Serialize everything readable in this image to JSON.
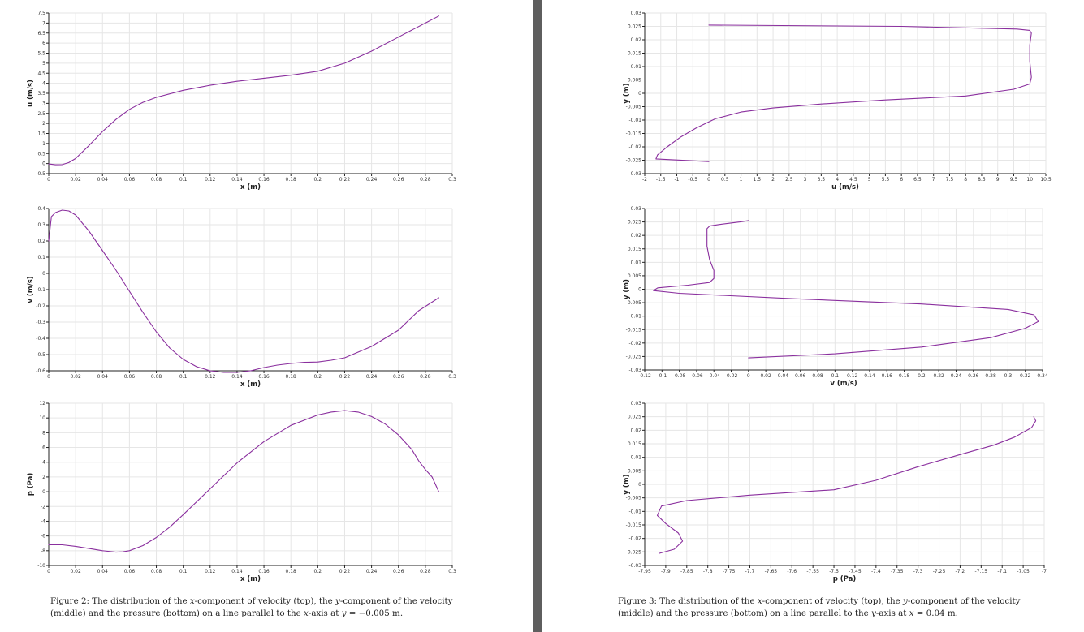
{
  "style": {
    "series_color": "#8a2f9e",
    "gutter_color": "#5e5e5e"
  },
  "captions": {
    "fig2": {
      "label": "Figure 2:",
      "p1": "The distribution of the ",
      "m1": "x",
      "p2": "-component of velocity (top), the ",
      "m2": "y",
      "p3": "-component of the velocity (middle) and the pressure (bottom) on a line parallel to the ",
      "m3": "x",
      "p4": "-axis at ",
      "m4": "y",
      "p5": " = −0.005 m."
    },
    "fig3": {
      "label": "Figure 3:",
      "p1": "The distribution of the ",
      "m1": "x",
      "p2": "-component of velocity (top), the ",
      "m2": "y",
      "p3": "-component of the velocity (middle) and the pressure (bottom) on a line parallel to the ",
      "m3": "y",
      "p4": "-axis at ",
      "m4": "x",
      "p5": " = 0.04 m."
    }
  },
  "chart_data": [
    {
      "id": "fig2-u",
      "type": "line",
      "title": "",
      "xlabel": "x (m)",
      "ylabel": "u (m/s)",
      "xlim": [
        0,
        0.3
      ],
      "ylim": [
        -0.5,
        7.5
      ],
      "xticks": [
        0,
        0.02,
        0.04,
        0.06,
        0.08,
        0.1,
        0.12,
        0.14,
        0.16,
        0.18,
        0.2,
        0.22,
        0.24,
        0.26,
        0.28,
        0.3
      ],
      "xtick_labels": [
        "0",
        "0.02",
        "0.04",
        "0.06",
        "0.08",
        "0.1",
        "0.12",
        "0.14",
        "0.16",
        "0.18",
        "0.2",
        "0.22",
        "0.24",
        "0.26",
        "0.28",
        "0.3"
      ],
      "yticks": [
        -0.5,
        0,
        0.5,
        1,
        1.5,
        2,
        2.5,
        3,
        3.5,
        4,
        4.5,
        5,
        5.5,
        6,
        6.5,
        7,
        7.5
      ],
      "ytick_labels": [
        "-0.5",
        "0",
        "0.5",
        "1",
        "1.5",
        "2",
        "2.5",
        "3",
        "3.5",
        "4",
        "4.5",
        "5",
        "5.5",
        "6",
        "6.5",
        "7",
        "7.5"
      ],
      "grid": true,
      "series": [
        {
          "name": "u",
          "x": [
            0,
            0.005,
            0.01,
            0.015,
            0.02,
            0.03,
            0.04,
            0.05,
            0.06,
            0.07,
            0.08,
            0.1,
            0.12,
            0.14,
            0.16,
            0.18,
            0.2,
            0.22,
            0.24,
            0.26,
            0.28,
            0.29
          ],
          "y": [
            -0.02,
            -0.06,
            -0.05,
            0.05,
            0.25,
            0.9,
            1.6,
            2.2,
            2.7,
            3.05,
            3.3,
            3.65,
            3.9,
            4.1,
            4.25,
            4.4,
            4.6,
            5.0,
            5.6,
            6.3,
            7.0,
            7.35
          ]
        }
      ]
    },
    {
      "id": "fig2-v",
      "type": "line",
      "title": "",
      "xlabel": "x (m)",
      "ylabel": "v (m/s)",
      "xlim": [
        0,
        0.3
      ],
      "ylim": [
        -0.6,
        0.4
      ],
      "xticks": [
        0,
        0.02,
        0.04,
        0.06,
        0.08,
        0.1,
        0.12,
        0.14,
        0.16,
        0.18,
        0.2,
        0.22,
        0.24,
        0.26,
        0.28,
        0.3
      ],
      "xtick_labels": [
        "0",
        "0.02",
        "0.04",
        "0.06",
        "0.08",
        "0.1",
        "0.12",
        "0.14",
        "0.16",
        "0.18",
        "0.2",
        "0.22",
        "0.24",
        "0.26",
        "0.28",
        "0.3"
      ],
      "yticks": [
        -0.6,
        -0.5,
        -0.4,
        -0.3,
        -0.2,
        -0.1,
        0,
        0.1,
        0.2,
        0.3,
        0.4
      ],
      "ytick_labels": [
        "-0.6",
        "-0.5",
        "-0.4",
        "-0.3",
        "-0.2",
        "-0.1",
        "0",
        "0.1",
        "0.2",
        "0.3",
        "0.4"
      ],
      "grid": true,
      "series": [
        {
          "name": "v",
          "x": [
            0,
            0.002,
            0.005,
            0.01,
            0.015,
            0.02,
            0.03,
            0.04,
            0.05,
            0.06,
            0.07,
            0.08,
            0.09,
            0.1,
            0.11,
            0.12,
            0.13,
            0.14,
            0.15,
            0.16,
            0.17,
            0.18,
            0.19,
            0.2,
            0.21,
            0.22,
            0.24,
            0.26,
            0.275,
            0.29
          ],
          "y": [
            0.2,
            0.35,
            0.375,
            0.39,
            0.385,
            0.36,
            0.26,
            0.14,
            0.02,
            -0.11,
            -0.24,
            -0.36,
            -0.46,
            -0.53,
            -0.575,
            -0.6,
            -0.61,
            -0.61,
            -0.6,
            -0.58,
            -0.565,
            -0.555,
            -0.548,
            -0.546,
            -0.535,
            -0.52,
            -0.45,
            -0.35,
            -0.23,
            -0.15
          ]
        }
      ]
    },
    {
      "id": "fig2-p",
      "type": "line",
      "title": "",
      "xlabel": "x (m)",
      "ylabel": "p (Pa)",
      "xlim": [
        0,
        0.3
      ],
      "ylim": [
        -10,
        12
      ],
      "xticks": [
        0,
        0.02,
        0.04,
        0.06,
        0.08,
        0.1,
        0.12,
        0.14,
        0.16,
        0.18,
        0.2,
        0.22,
        0.24,
        0.26,
        0.28,
        0.3
      ],
      "xtick_labels": [
        "0",
        "0.02",
        "0.04",
        "0.06",
        "0.08",
        "0.1",
        "0.12",
        "0.14",
        "0.16",
        "0.18",
        "0.2",
        "0.22",
        "0.24",
        "0.26",
        "0.28",
        "0.3"
      ],
      "yticks": [
        -10,
        -8,
        -6,
        -4,
        -2,
        0,
        2,
        4,
        6,
        8,
        10,
        12
      ],
      "ytick_labels": [
        "-10",
        "-8",
        "-6",
        "-4",
        "-2",
        "0",
        "2",
        "4",
        "6",
        "8",
        "10",
        "12"
      ],
      "grid": true,
      "series": [
        {
          "name": "p",
          "x": [
            0,
            0.01,
            0.02,
            0.03,
            0.04,
            0.05,
            0.055,
            0.06,
            0.07,
            0.08,
            0.09,
            0.1,
            0.12,
            0.14,
            0.16,
            0.18,
            0.2,
            0.21,
            0.22,
            0.23,
            0.24,
            0.25,
            0.26,
            0.27,
            0.275,
            0.28,
            0.285,
            0.29
          ],
          "y": [
            -7.2,
            -7.2,
            -7.4,
            -7.7,
            -8.0,
            -8.2,
            -8.15,
            -8.0,
            -7.3,
            -6.2,
            -4.8,
            -3.1,
            0.4,
            3.9,
            6.8,
            9.0,
            10.4,
            10.8,
            11.0,
            10.8,
            10.2,
            9.2,
            7.7,
            5.7,
            4.2,
            3.0,
            2.0,
            0.0
          ]
        }
      ]
    },
    {
      "id": "fig3-u",
      "type": "line",
      "title": "",
      "xlabel": "u (m/s)",
      "ylabel": "y (m)",
      "xlim": [
        -2,
        10.5
      ],
      "ylim": [
        -0.03,
        0.03
      ],
      "xticks": [
        -2,
        -1.5,
        -1,
        -0.5,
        0,
        0.5,
        1,
        1.5,
        2,
        2.5,
        3,
        3.5,
        4,
        4.5,
        5,
        5.5,
        6,
        6.5,
        7,
        7.5,
        8,
        8.5,
        9,
        9.5,
        10,
        10.5
      ],
      "xtick_labels": [
        "-2",
        "-1.5",
        "-1",
        "-0.5",
        "0",
        "0.5",
        "1",
        "1.5",
        "2",
        "2.5",
        "3",
        "3.5",
        "4",
        "4.5",
        "5",
        "5.5",
        "6",
        "6.5",
        "7",
        "7.5",
        "8",
        "8.5",
        "9",
        "9.5",
        "10",
        "10.5"
      ],
      "yticks": [
        -0.03,
        -0.025,
        -0.02,
        -0.015,
        -0.01,
        -0.005,
        0,
        0.005,
        0.01,
        0.015,
        0.02,
        0.025,
        0.03
      ],
      "ytick_labels": [
        "-0.03",
        "-0.025",
        "-0.02",
        "-0.015",
        "-0.01",
        "-0.005",
        "0",
        "0.005",
        "0.01",
        "0.015",
        "0.02",
        "0.025",
        "0.03"
      ],
      "grid": true,
      "series": [
        {
          "name": "u",
          "x": [
            0,
            -1.65,
            -1.6,
            -1.3,
            -0.9,
            -0.4,
            0.2,
            1.0,
            2.0,
            3.5,
            5.5,
            8.0,
            9.5,
            10.0,
            10.05,
            10.0,
            10.0,
            10.05,
            10.0,
            9.6,
            6.0,
            0
          ],
          "y": [
            -0.0255,
            -0.0245,
            -0.023,
            -0.02,
            -0.0165,
            -0.013,
            -0.0095,
            -0.007,
            -0.0055,
            -0.004,
            -0.0025,
            -0.001,
            0.0015,
            0.0035,
            0.006,
            0.012,
            0.018,
            0.0225,
            0.0235,
            0.024,
            0.025,
            0.0255
          ]
        }
      ]
    },
    {
      "id": "fig3-v",
      "type": "line",
      "title": "",
      "xlabel": "v (m/s)",
      "ylabel": "y (m)",
      "xlim": [
        -0.12,
        0.34
      ],
      "ylim": [
        -0.03,
        0.03
      ],
      "xticks": [
        -0.12,
        -0.1,
        -0.08,
        -0.06,
        -0.04,
        -0.02,
        0,
        0.02,
        0.04,
        0.06,
        0.08,
        0.1,
        0.12,
        0.14,
        0.16,
        0.18,
        0.2,
        0.22,
        0.24,
        0.26,
        0.28,
        0.3,
        0.32,
        0.34
      ],
      "xtick_labels": [
        "-0.12",
        "-0.1",
        "-0.08",
        "-0.06",
        "-0.04",
        "-0.02",
        "0",
        "0.02",
        "0.04",
        "0.06",
        "0.08",
        "0.1",
        "0.12",
        "0.14",
        "0.16",
        "0.18",
        "0.2",
        "0.22",
        "0.24",
        "0.26",
        "0.28",
        "0.3",
        "0.32",
        "0.34"
      ],
      "yticks": [
        -0.03,
        -0.025,
        -0.02,
        -0.015,
        -0.01,
        -0.005,
        0,
        0.005,
        0.01,
        0.015,
        0.02,
        0.025,
        0.03
      ],
      "ytick_labels": [
        "-0.03",
        "-0.025",
        "-0.02",
        "-0.015",
        "-0.01",
        "-0.005",
        "0",
        "0.005",
        "0.01",
        "0.015",
        "0.02",
        "0.025",
        "0.03"
      ],
      "grid": true,
      "series": [
        {
          "name": "v",
          "x": [
            0,
            0.1,
            0.2,
            0.28,
            0.32,
            0.335,
            0.33,
            0.3,
            0.2,
            0.05,
            -0.08,
            -0.11,
            -0.105,
            -0.07,
            -0.045,
            -0.04,
            -0.04,
            -0.045,
            -0.048,
            -0.048,
            -0.045,
            -0.035,
            -0.01,
            0
          ],
          "y": [
            -0.0255,
            -0.024,
            -0.0215,
            -0.018,
            -0.0145,
            -0.012,
            -0.0095,
            -0.0075,
            -0.0055,
            -0.0035,
            -0.0015,
            -0.0005,
            0.0005,
            0.0015,
            0.0025,
            0.004,
            0.007,
            0.011,
            0.016,
            0.0225,
            0.0235,
            0.024,
            0.025,
            0.0255
          ]
        }
      ]
    },
    {
      "id": "fig3-p",
      "type": "line",
      "title": "",
      "xlabel": "p (Pa)",
      "ylabel": "y (m)",
      "xlim": [
        -7.95,
        -7
      ],
      "ylim": [
        -0.03,
        0.03
      ],
      "xticks": [
        -7.95,
        -7.9,
        -7.85,
        -7.8,
        -7.75,
        -7.7,
        -7.65,
        -7.6,
        -7.55,
        -7.5,
        -7.45,
        -7.4,
        -7.35,
        -7.3,
        -7.25,
        -7.2,
        -7.15,
        -7.1,
        -7.05,
        -7
      ],
      "xtick_labels": [
        "-7.95",
        "-7.9",
        "-7.85",
        "-7.8",
        "-7.75",
        "-7.7",
        "-7.65",
        "-7.6",
        "-7.55",
        "-7.5",
        "-7.45",
        "-7.4",
        "-7.35",
        "-7.3",
        "-7.25",
        "-7.2",
        "-7.15",
        "-7.1",
        "-7.05",
        "-7"
      ],
      "yticks": [
        -0.03,
        -0.025,
        -0.02,
        -0.015,
        -0.01,
        -0.005,
        0,
        0.005,
        0.01,
        0.015,
        0.02,
        0.025,
        0.03
      ],
      "ytick_labels": [
        "-0.03",
        "-0.025",
        "-0.02",
        "-0.015",
        "-0.01",
        "-0.005",
        "0",
        "0.005",
        "0.01",
        "0.015",
        "0.02",
        "0.025",
        "0.03"
      ],
      "grid": true,
      "series": [
        {
          "name": "p",
          "x": [
            -7.915,
            -7.88,
            -7.86,
            -7.87,
            -7.9,
            -7.92,
            -7.91,
            -7.85,
            -7.7,
            -7.5,
            -7.4,
            -7.3,
            -7.2,
            -7.12,
            -7.07,
            -7.03,
            -7.02,
            -7.025
          ],
          "y": [
            -0.0255,
            -0.024,
            -0.021,
            -0.018,
            -0.0145,
            -0.0115,
            -0.008,
            -0.006,
            -0.004,
            -0.002,
            0.0015,
            0.0065,
            0.011,
            0.0145,
            0.0175,
            0.021,
            0.0235,
            0.025
          ]
        }
      ]
    }
  ]
}
